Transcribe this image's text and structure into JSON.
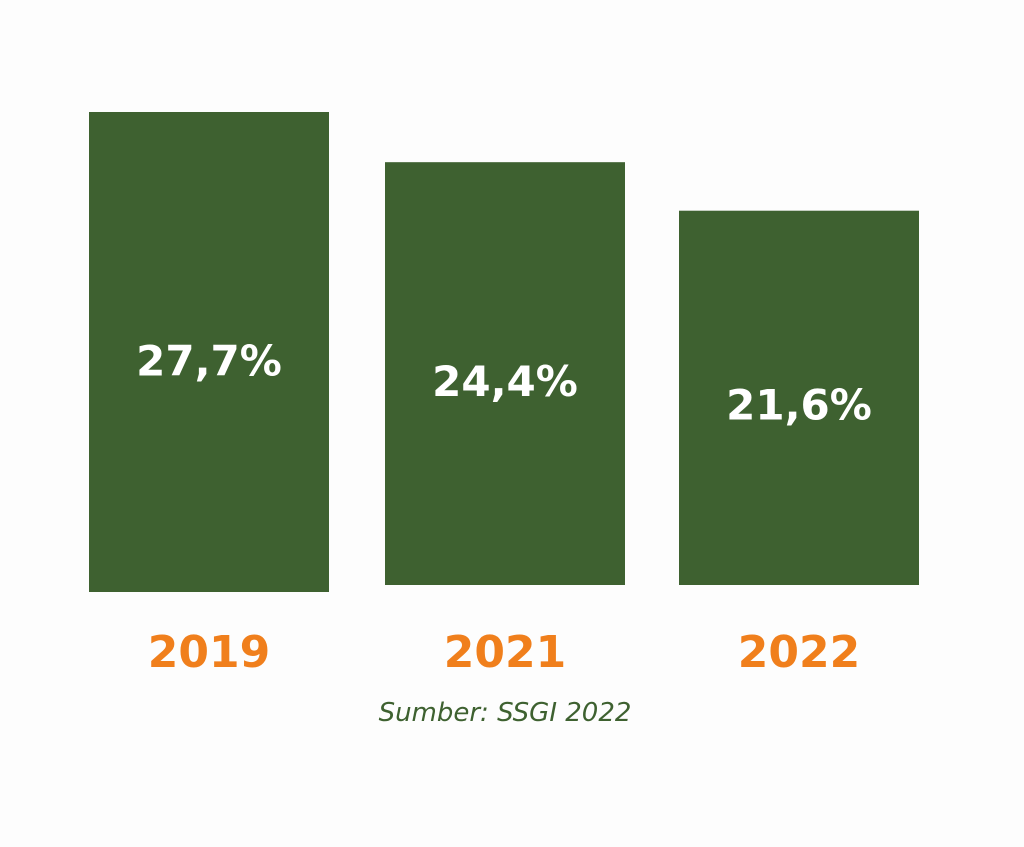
{
  "chart_data": {
    "type": "bar",
    "categories": [
      "2019",
      "2021",
      "2022"
    ],
    "values": [
      27.7,
      24.4,
      21.6
    ],
    "value_labels": [
      "27,7%",
      "24,4%",
      "21,6%"
    ],
    "title": "",
    "xlabel": "",
    "ylabel": "",
    "grid": false,
    "legend": "none"
  },
  "source": "Sumber: SSGI 2022",
  "colors": {
    "bar": "#3e6130",
    "value_text": "#ffffff",
    "category_text": "#f07f1c",
    "source_text": "#3e6130",
    "background": "#fdfdfd"
  }
}
